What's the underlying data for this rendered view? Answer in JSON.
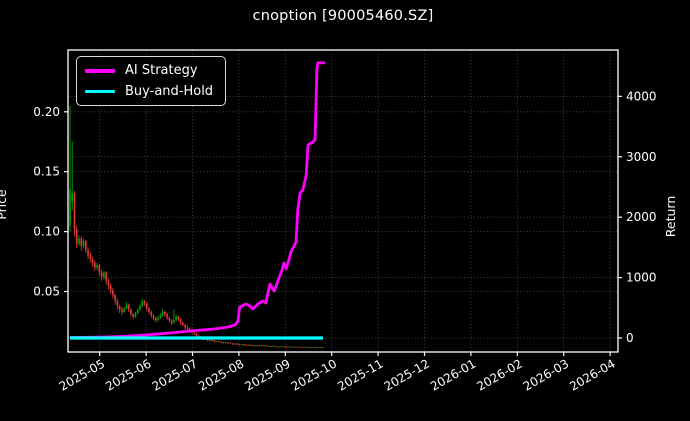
{
  "title": "cnoption [90005460.SZ]",
  "legend": [
    {
      "label": "AI Strategy",
      "color": "#ff00ff"
    },
    {
      "label": "Buy-and-Hold",
      "color": "#00ffff"
    }
  ],
  "colors": {
    "background": "#000000",
    "text": "#ffffff",
    "spine": "#ffffff",
    "grid": "rgba(255,255,255,0.32)",
    "candle_up": "#00a000",
    "candle_down": "#dd3833",
    "strategy_line": "#ff00ff",
    "buyhold_line": "#00ffff"
  },
  "axes": {
    "price": {
      "label": "Price",
      "range": [
        -0.0005,
        0.2516
      ],
      "ticks": [
        0.05,
        0.1,
        0.15,
        0.2
      ],
      "tick_labels": [
        "0.05",
        "0.10",
        "0.15",
        "0.20"
      ]
    },
    "return": {
      "label": "Return",
      "range": [
        -232,
        4768
      ],
      "ticks": [
        0,
        1000,
        2000,
        3000,
        4000
      ],
      "tick_labels": [
        "0",
        "1000",
        "2000",
        "3000",
        "4000"
      ]
    },
    "x": {
      "range": [
        0.317,
        12.17
      ],
      "ticks": [
        1,
        2,
        3,
        4,
        5,
        6,
        7,
        8,
        9,
        10,
        11,
        12
      ],
      "tick_labels": [
        "2025-05",
        "2025-06",
        "2025-07",
        "2025-08",
        "2025-09",
        "2025-10",
        "2025-11",
        "2025-12",
        "2026-01",
        "2026-02",
        "2026-03",
        "2026-04"
      ]
    }
  },
  "chart_data": {
    "type": "candlestick+line",
    "title": "cnoption [90005460.SZ]",
    "ylabel_left": "Price",
    "ylabel_right": "Return",
    "grid": "dotted, both axes",
    "legend_position": "upper left",
    "candles": {
      "x_start": 0.36,
      "x_step": 0.04866,
      "ohlc": [
        [
          0.105,
          0.205,
          0.1,
          0.135
        ],
        [
          0.125,
          0.175,
          0.118,
          0.132
        ],
        [
          0.132,
          0.134,
          0.096,
          0.102
        ],
        [
          0.102,
          0.105,
          0.086,
          0.09
        ],
        [
          0.09,
          0.097,
          0.088,
          0.094
        ],
        [
          0.094,
          0.096,
          0.084,
          0.088
        ],
        [
          0.088,
          0.094,
          0.086,
          0.092
        ],
        [
          0.092,
          0.093,
          0.082,
          0.085
        ],
        [
          0.085,
          0.087,
          0.077,
          0.08
        ],
        [
          0.08,
          0.083,
          0.074,
          0.077
        ],
        [
          0.077,
          0.079,
          0.071,
          0.074
        ],
        [
          0.074,
          0.076,
          0.067,
          0.07
        ],
        [
          0.07,
          0.074,
          0.068,
          0.072
        ],
        [
          0.072,
          0.073,
          0.063,
          0.066
        ],
        [
          0.066,
          0.068,
          0.059,
          0.062
        ],
        [
          0.062,
          0.067,
          0.06,
          0.066
        ],
        [
          0.066,
          0.067,
          0.056,
          0.059
        ],
        [
          0.059,
          0.061,
          0.052,
          0.055
        ],
        [
          0.055,
          0.057,
          0.048,
          0.051
        ],
        [
          0.051,
          0.053,
          0.044,
          0.047
        ],
        [
          0.047,
          0.048,
          0.039,
          0.042
        ],
        [
          0.042,
          0.044,
          0.035,
          0.038
        ],
        [
          0.038,
          0.039,
          0.032,
          0.035
        ],
        [
          0.035,
          0.037,
          0.03,
          0.033
        ],
        [
          0.033,
          0.037,
          0.032,
          0.036
        ],
        [
          0.036,
          0.041,
          0.035,
          0.039
        ],
        [
          0.039,
          0.04,
          0.033,
          0.035
        ],
        [
          0.035,
          0.036,
          0.029,
          0.031
        ],
        [
          0.031,
          0.032,
          0.027,
          0.029
        ],
        [
          0.029,
          0.033,
          0.028,
          0.032
        ],
        [
          0.032,
          0.036,
          0.031,
          0.035
        ],
        [
          0.035,
          0.039,
          0.034,
          0.038
        ],
        [
          0.038,
          0.044,
          0.037,
          0.042
        ],
        [
          0.042,
          0.043,
          0.038,
          0.04
        ],
        [
          0.04,
          0.041,
          0.034,
          0.036
        ],
        [
          0.036,
          0.037,
          0.031,
          0.033
        ],
        [
          0.033,
          0.034,
          0.028,
          0.03
        ],
        [
          0.03,
          0.031,
          0.026,
          0.028
        ],
        [
          0.028,
          0.029,
          0.024,
          0.026
        ],
        [
          0.026,
          0.03,
          0.025,
          0.028
        ],
        [
          0.028,
          0.032,
          0.027,
          0.03
        ],
        [
          0.03,
          0.035,
          0.029,
          0.033
        ],
        [
          0.033,
          0.034,
          0.029,
          0.031
        ],
        [
          0.031,
          0.032,
          0.026,
          0.028
        ],
        [
          0.028,
          0.029,
          0.024,
          0.026
        ],
        [
          0.026,
          0.027,
          0.022,
          0.024
        ],
        [
          0.024,
          0.035,
          0.023,
          0.026
        ],
        [
          0.026,
          0.031,
          0.025,
          0.029
        ],
        [
          0.029,
          0.03,
          0.025,
          0.027
        ],
        [
          0.027,
          0.028,
          0.022,
          0.024
        ],
        [
          0.024,
          0.025,
          0.021,
          0.022
        ],
        [
          0.022,
          0.023,
          0.018,
          0.02
        ],
        [
          0.02,
          0.022,
          0.018,
          0.019
        ],
        [
          0.019,
          0.02,
          0.016,
          0.018
        ],
        [
          0.018,
          0.019,
          0.015,
          0.016
        ],
        [
          0.016,
          0.017,
          0.014,
          0.015
        ],
        [
          0.015,
          0.016,
          0.012,
          0.013
        ],
        [
          0.013,
          0.014,
          0.011,
          0.012
        ],
        [
          0.012,
          0.013,
          0.01,
          0.011
        ],
        [
          0.011,
          0.012,
          0.009,
          0.01
        ],
        [
          0.01,
          0.011,
          0.0095,
          0.0105
        ],
        [
          0.0105,
          0.011,
          0.0085,
          0.009
        ],
        [
          0.009,
          0.01,
          0.0085,
          0.0095
        ],
        [
          0.0095,
          0.01,
          0.0085,
          0.009
        ],
        [
          0.009,
          0.0095,
          0.0075,
          0.008
        ],
        [
          0.008,
          0.009,
          0.0078,
          0.0085
        ],
        [
          0.0085,
          0.009,
          0.0075,
          0.008
        ],
        [
          0.008,
          0.0085,
          0.007,
          0.0075
        ],
        [
          0.0075,
          0.008,
          0.0065,
          0.007
        ],
        [
          0.007,
          0.008,
          0.0068,
          0.0075
        ],
        [
          0.0075,
          0.008,
          0.0065,
          0.007
        ],
        [
          0.007,
          0.0075,
          0.006,
          0.0065
        ],
        [
          0.0065,
          0.007,
          0.0055,
          0.006
        ],
        [
          0.006,
          0.007,
          0.0058,
          0.0065
        ],
        [
          0.0065,
          0.007,
          0.0055,
          0.006
        ],
        [
          0.006,
          0.0065,
          0.005,
          0.0055
        ],
        [
          0.0055,
          0.0065,
          0.0052,
          0.006
        ],
        [
          0.006,
          0.0062,
          0.005,
          0.0055
        ],
        [
          0.0055,
          0.006,
          0.0045,
          0.005
        ],
        [
          0.005,
          0.006,
          0.0048,
          0.0055
        ],
        [
          0.0055,
          0.0058,
          0.0045,
          0.005
        ],
        [
          0.005,
          0.0055,
          0.0042,
          0.0048
        ],
        [
          0.0048,
          0.0055,
          0.0045,
          0.005
        ],
        [
          0.005,
          0.0052,
          0.004,
          0.0045
        ],
        [
          0.0045,
          0.0055,
          0.0043,
          0.005
        ],
        [
          0.005,
          0.0052,
          0.004,
          0.0045
        ],
        [
          0.0045,
          0.0055,
          0.0043,
          0.005
        ],
        [
          0.005,
          0.0051,
          0.0038,
          0.0042
        ],
        [
          0.0042,
          0.0048,
          0.0039,
          0.0045
        ],
        [
          0.0045,
          0.0046,
          0.0036,
          0.004
        ],
        [
          0.004,
          0.0048,
          0.0038,
          0.0045
        ],
        [
          0.0045,
          0.0046,
          0.0036,
          0.004
        ],
        [
          0.004,
          0.0042,
          0.0034,
          0.0038
        ],
        [
          0.0038,
          0.0043,
          0.0036,
          0.004
        ],
        [
          0.004,
          0.0045,
          0.0038,
          0.0042
        ],
        [
          0.0042,
          0.0043,
          0.0034,
          0.0038
        ],
        [
          0.0038,
          0.004,
          0.0032,
          0.0035
        ],
        [
          0.0035,
          0.0042,
          0.0033,
          0.004
        ],
        [
          0.004,
          0.0041,
          0.0033,
          0.0036
        ],
        [
          0.0036,
          0.004,
          0.0034,
          0.0038
        ],
        [
          0.0038,
          0.0039,
          0.0032,
          0.0035
        ],
        [
          0.0035,
          0.0042,
          0.0033,
          0.004
        ],
        [
          0.004,
          0.0041,
          0.0033,
          0.0036
        ],
        [
          0.0036,
          0.0037,
          0.0031,
          0.0034
        ],
        [
          0.0034,
          0.004,
          0.0032,
          0.0038
        ],
        [
          0.0038,
          0.0039,
          0.0032,
          0.0035
        ],
        [
          0.0035,
          0.0036,
          0.003,
          0.0032
        ],
        [
          0.0032,
          0.0038,
          0.0031,
          0.0036
        ],
        [
          0.0036,
          0.0037,
          0.003,
          0.0033
        ],
        [
          0.0033,
          0.0037,
          0.0031,
          0.0035
        ],
        [
          0.0035,
          0.0036,
          0.0028,
          0.003
        ],
        [
          0.003,
          0.0036,
          0.0029,
          0.0034
        ],
        [
          0.0034,
          0.0035,
          0.0029,
          0.0032
        ]
      ]
    },
    "series": [
      {
        "name": "AI Strategy",
        "axis": "return",
        "color": "#ff00ff",
        "width": 2.8,
        "points": [
          [
            0.36,
            8
          ],
          [
            0.8,
            12
          ],
          [
            1.2,
            18
          ],
          [
            1.6,
            30
          ],
          [
            2.08,
            55
          ],
          [
            2.3,
            70
          ],
          [
            2.52,
            83
          ],
          [
            2.75,
            100
          ],
          [
            2.95,
            116
          ],
          [
            3.1,
            125
          ],
          [
            3.27,
            135
          ],
          [
            3.49,
            150
          ],
          [
            3.66,
            168
          ],
          [
            3.77,
            182
          ],
          [
            3.92,
            215
          ],
          [
            3.98,
            280
          ],
          [
            4.0,
            420
          ],
          [
            4.02,
            513
          ],
          [
            4.15,
            563
          ],
          [
            4.24,
            530
          ],
          [
            4.3,
            480
          ],
          [
            4.41,
            563
          ],
          [
            4.52,
            613
          ],
          [
            4.58,
            580
          ],
          [
            4.67,
            894
          ],
          [
            4.72,
            820
          ],
          [
            4.76,
            778
          ],
          [
            4.84,
            944
          ],
          [
            4.93,
            1126
          ],
          [
            4.97,
            1242
          ],
          [
            5.02,
            1143
          ],
          [
            5.08,
            1300
          ],
          [
            5.12,
            1424
          ],
          [
            5.19,
            1523
          ],
          [
            5.23,
            1590
          ],
          [
            5.27,
            2120
          ],
          [
            5.32,
            2401
          ],
          [
            5.38,
            2450
          ],
          [
            5.45,
            2699
          ],
          [
            5.49,
            3196
          ],
          [
            5.6,
            3245
          ],
          [
            5.64,
            3279
          ],
          [
            5.68,
            4438
          ],
          [
            5.7,
            4554
          ],
          [
            5.86,
            4554
          ]
        ]
      },
      {
        "name": "Buy-and-Hold",
        "axis": "return",
        "color": "#00ffff",
        "width": 3.2,
        "points": [
          [
            0.36,
            0
          ],
          [
            5.81,
            0
          ]
        ]
      }
    ]
  }
}
